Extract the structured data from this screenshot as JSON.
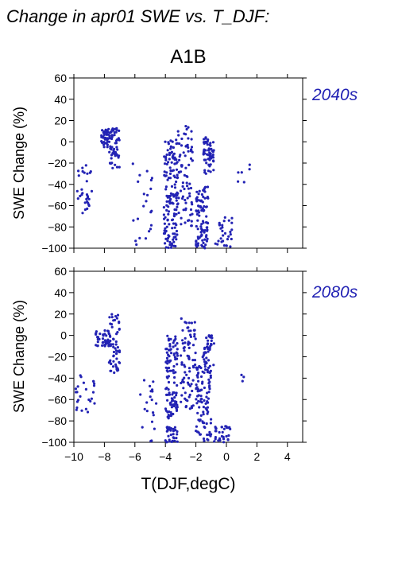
{
  "header": {
    "title": "Change in apr01 SWE vs. T_DJF:",
    "scenario": "A1B"
  },
  "chart_data": [
    {
      "type": "scatter",
      "panel_label": "2040s",
      "xlabel": "",
      "ylabel": "SWE Change (%)",
      "xlim": [
        -10,
        5
      ],
      "ylim": [
        -100,
        60
      ],
      "xticks": [],
      "yticks": [
        "60",
        "40",
        "20",
        "0",
        "−20",
        "−40",
        "−60",
        "−80",
        "−100"
      ],
      "marker_color": "#2323b4",
      "clusters": [
        {
          "x": [
            -9.9,
            -8.8
          ],
          "y": [
            -68,
            -22
          ],
          "n": 30
        },
        {
          "x": [
            -8.2,
            -7.6
          ],
          "y": [
            -5,
            12
          ],
          "n": 40
        },
        {
          "x": [
            -7.7,
            -7.0
          ],
          "y": [
            -25,
            13
          ],
          "n": 55
        },
        {
          "x": [
            -6.2,
            -4.6
          ],
          "y": [
            -100,
            -20
          ],
          "n": 22
        },
        {
          "x": [
            -4.1,
            -3.2
          ],
          "y": [
            -100,
            2
          ],
          "n": 150
        },
        {
          "x": [
            -3.2,
            -2.2
          ],
          "y": [
            -80,
            18
          ],
          "n": 80
        },
        {
          "x": [
            -2.0,
            -1.2
          ],
          "y": [
            -100,
            -40
          ],
          "n": 90
        },
        {
          "x": [
            -1.5,
            -0.8
          ],
          "y": [
            -30,
            5
          ],
          "n": 60
        },
        {
          "x": [
            -0.8,
            0.4
          ],
          "y": [
            -100,
            -70
          ],
          "n": 30
        },
        {
          "x": [
            0.6,
            1.6
          ],
          "y": [
            -20,
            -40
          ],
          "n": 6
        }
      ]
    },
    {
      "type": "scatter",
      "panel_label": "2080s",
      "xlabel": "T(DJF,degC)",
      "ylabel": "SWE Change (%)",
      "xlim": [
        -10,
        5
      ],
      "ylim": [
        -100,
        60
      ],
      "xticks": [
        "−10",
        "−8",
        "−6",
        "−4",
        "−2",
        "0",
        "2",
        "4"
      ],
      "yticks": [
        "60",
        "40",
        "20",
        "0",
        "−20",
        "−40",
        "−60",
        "−80",
        "−100"
      ],
      "marker_color": "#2323b4",
      "clusters": [
        {
          "x": [
            -9.9,
            -8.6
          ],
          "y": [
            -72,
            -36
          ],
          "n": 25
        },
        {
          "x": [
            -8.6,
            -7.6
          ],
          "y": [
            -10,
            5
          ],
          "n": 40
        },
        {
          "x": [
            -7.7,
            -7.0
          ],
          "y": [
            -35,
            20
          ],
          "n": 60
        },
        {
          "x": [
            -5.8,
            -4.6
          ],
          "y": [
            -100,
            -36
          ],
          "n": 20
        },
        {
          "x": [
            -4.0,
            -3.2
          ],
          "y": [
            -100,
            0
          ],
          "n": 140
        },
        {
          "x": [
            -3.0,
            -2.0
          ],
          "y": [
            -70,
            17
          ],
          "n": 80
        },
        {
          "x": [
            -2.0,
            -1.0
          ],
          "y": [
            -100,
            -20
          ],
          "n": 100
        },
        {
          "x": [
            -1.5,
            -0.8
          ],
          "y": [
            -35,
            0
          ],
          "n": 40
        },
        {
          "x": [
            -0.8,
            0.3
          ],
          "y": [
            -100,
            -85
          ],
          "n": 30
        },
        {
          "x": [
            0.6,
            1.2
          ],
          "y": [
            -36,
            -55
          ],
          "n": 3
        }
      ]
    }
  ]
}
